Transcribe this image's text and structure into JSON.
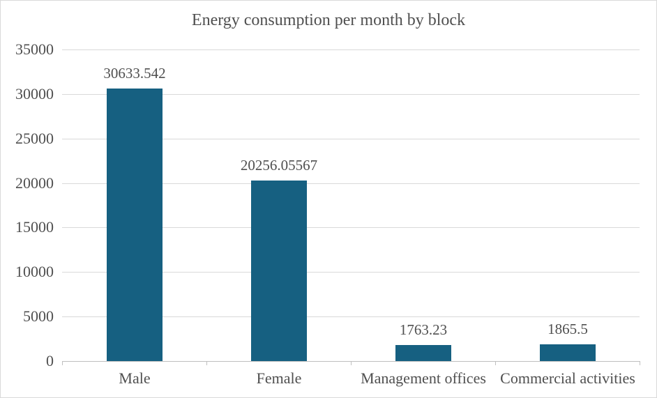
{
  "title": "Energy consumption per month by block",
  "chart_data": {
    "type": "bar",
    "title": "Energy consumption per month by block",
    "categories": [
      "Male",
      "Female",
      "Management offices",
      "Commercial activities"
    ],
    "values": [
      30633.542,
      20256.05567,
      1763.23,
      1865.5
    ],
    "value_labels": [
      "30633.542",
      "20256.05567",
      "1763.23",
      "1865.5"
    ],
    "ylim": [
      0,
      35000
    ],
    "yticks": [
      0,
      5000,
      10000,
      15000,
      20000,
      25000,
      30000,
      35000
    ],
    "ytick_labels": [
      "0",
      "5000",
      "10000",
      "15000",
      "20000",
      "25000",
      "30000",
      "35000"
    ],
    "xlabel": "",
    "ylabel": "",
    "grid": "horizontal",
    "legend": "none",
    "colors": {
      "bar_fill": "#166081",
      "gridline": "#d9d9d9",
      "axis_line": "#bfbfbf",
      "text": "#4f4f4f",
      "background": "#ffffff",
      "frame_border": "#d9d9d9"
    }
  }
}
